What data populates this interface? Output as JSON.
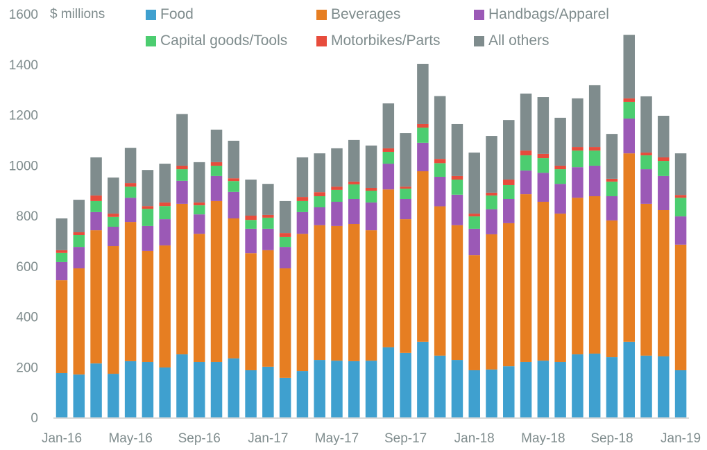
{
  "chart_data": {
    "type": "bar",
    "stacked": true,
    "title": "",
    "unit_label": "$ millions",
    "xlabel": "",
    "ylabel": "$ millions",
    "ylim": [
      0,
      1600
    ],
    "yticks": [
      0,
      200,
      400,
      600,
      800,
      1000,
      1200,
      1400,
      1600
    ],
    "grid": false,
    "legend_position": "top",
    "categories": [
      "Jan-16",
      "Feb-16",
      "Mar-16",
      "Apr-16",
      "May-16",
      "Jun-16",
      "Jul-16",
      "Aug-16",
      "Sep-16",
      "Oct-16",
      "Nov-16",
      "Dec-16",
      "Jan-17",
      "Feb-17",
      "Mar-17",
      "Apr-17",
      "May-17",
      "Jun-17",
      "Jul-17",
      "Aug-17",
      "Sep-17",
      "Oct-17",
      "Nov-17",
      "Dec-17",
      "Jan-18",
      "Feb-18",
      "Mar-18",
      "Apr-18",
      "May-18",
      "Jun-18",
      "Jul-18",
      "Aug-18",
      "Sep-18",
      "Oct-18",
      "Nov-18",
      "Dec-18",
      "Jan-19"
    ],
    "xtick_labels": [
      "Jan-16",
      "May-16",
      "Sep-16",
      "Jan-17",
      "May-17",
      "Sep-17",
      "Jan-18",
      "May-18",
      "Sep-18",
      "Jan-19"
    ],
    "xtick_every": 4,
    "series": [
      {
        "name": "Food",
        "color": "#3FA0CF",
        "values": [
          176,
          170,
          214,
          173,
          223,
          220,
          198,
          250,
          220,
          220,
          234,
          187,
          201,
          157,
          184,
          228,
          225,
          223,
          225,
          278,
          256,
          300,
          245,
          228,
          187,
          190,
          203,
          220,
          225,
          220,
          250,
          253,
          239,
          300,
          245,
          242,
          187
        ]
      },
      {
        "name": "Beverages",
        "color": "#E67E22",
        "values": [
          368,
          421,
          528,
          506,
          552,
          440,
          484,
          597,
          508,
          638,
          555,
          464,
          462,
          434,
          544,
          534,
          534,
          544,
          517,
          626,
          530,
          676,
          592,
          534,
          456,
          536,
          567,
          665,
          630,
          588,
          621,
          624,
          542,
          747,
          602,
          580,
          498
        ]
      },
      {
        "name": "Handbags/Apparel",
        "color": "#9B59B6",
        "values": [
          72,
          85,
          72,
          77,
          96,
          99,
          104,
          91,
          77,
          99,
          105,
          97,
          85,
          85,
          86,
          71,
          96,
          99,
          110,
          102,
          80,
          113,
          117,
          121,
          105,
          99,
          96,
          94,
          115,
          118,
          121,
          121,
          96,
          138,
          137,
          135,
          112
        ]
      },
      {
        "name": "Capital goods/Tools",
        "color": "#4CCD70",
        "values": [
          36,
          47,
          44,
          39,
          44,
          68,
          52,
          46,
          36,
          41,
          43,
          35,
          44,
          39,
          44,
          44,
          47,
          58,
          47,
          47,
          41,
          60,
          54,
          60,
          49,
          55,
          55,
          60,
          58,
          58,
          66,
          60,
          58,
          66,
          55,
          60,
          74
        ]
      },
      {
        "name": "Motorbikes/Parts",
        "color": "#E74C3C",
        "values": [
          11,
          11,
          22,
          13,
          14,
          11,
          14,
          14,
          11,
          14,
          11,
          17,
          11,
          16,
          16,
          16,
          13,
          11,
          11,
          14,
          8,
          14,
          17,
          14,
          11,
          11,
          22,
          19,
          17,
          14,
          14,
          14,
          11,
          14,
          11,
          14,
          11
        ]
      },
      {
        "name": "All others",
        "color": "#7F8C8D",
        "values": [
          126,
          129,
          151,
          143,
          140,
          143,
          154,
          205,
          160,
          129,
          149,
          143,
          123,
          127,
          157,
          154,
          152,
          165,
          168,
          178,
          212,
          239,
          249,
          206,
          242,
          225,
          236,
          226,
          225,
          190,
          193,
          245,
          178,
          252,
          223,
          165,
          165
        ]
      }
    ]
  },
  "legend": {
    "items": [
      "Food",
      "Beverages",
      "Handbags/Apparel",
      "Capital goods/Tools",
      "Motorbikes/Parts",
      "All others"
    ]
  }
}
